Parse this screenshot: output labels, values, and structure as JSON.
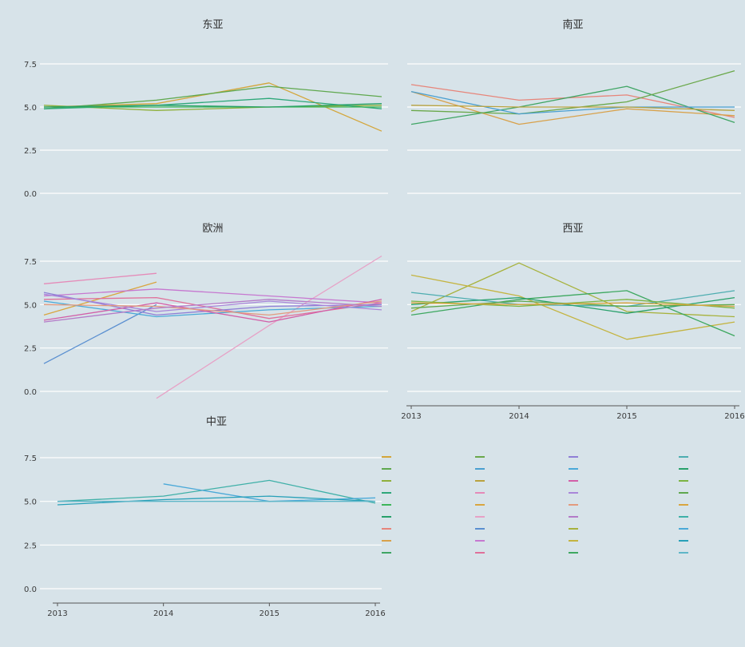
{
  "chart_data": [
    {
      "type": "line",
      "title": "东亚",
      "x": [
        2013,
        2014,
        2015,
        2016
      ],
      "ylim": [
        0,
        7.5
      ],
      "yticks": [
        "0.0",
        "2.5",
        "5.0",
        "7.5"
      ],
      "series": [
        {
          "color": "#d4a63a",
          "values": [
            5.0,
            5.2,
            6.4,
            3.6
          ]
        },
        {
          "color": "#5fa84e",
          "values": [
            4.9,
            5.4,
            6.2,
            5.6
          ]
        },
        {
          "color": "#8fb03c",
          "values": [
            5.1,
            4.8,
            5.0,
            5.1
          ]
        },
        {
          "color": "#2ea87a",
          "values": [
            4.9,
            5.1,
            5.5,
            4.9
          ]
        },
        {
          "color": "#3db55a",
          "values": [
            5.0,
            5.0,
            5.0,
            5.0
          ]
        },
        {
          "color": "#27a06a",
          "values": [
            5.0,
            5.1,
            5.0,
            5.2
          ]
        }
      ]
    },
    {
      "type": "line",
      "title": "南亚",
      "x": [
        2013,
        2014,
        2015,
        2016
      ],
      "ylim": [
        0,
        7.5
      ],
      "yticks": [
        "0.0",
        "2.5",
        "5.0",
        "7.5"
      ],
      "series": [
        {
          "color": "#e7857a",
          "values": [
            6.3,
            5.4,
            5.7,
            4.4
          ]
        },
        {
          "color": "#d8a14a",
          "values": [
            5.9,
            4.0,
            4.9,
            4.5
          ]
        },
        {
          "color": "#3fa564",
          "values": [
            4.0,
            5.0,
            6.2,
            4.1
          ]
        },
        {
          "color": "#6aa84a",
          "values": [
            4.8,
            4.6,
            5.3,
            7.1
          ]
        },
        {
          "color": "#4a9fd0",
          "values": [
            5.9,
            4.6,
            5.0,
            5.0
          ]
        },
        {
          "color": "#b9a23e",
          "values": [
            5.1,
            5.0,
            5.0,
            4.8
          ]
        }
      ]
    },
    {
      "type": "line",
      "title": "欧洲",
      "x": [
        2013,
        2014,
        2015,
        2016
      ],
      "ylim": [
        0,
        7.5
      ],
      "yticks": [
        "0.0",
        "2.5",
        "5.0",
        "7.5"
      ],
      "series": [
        {
          "color": "#e58ab8",
          "values": [
            6.2,
            6.8,
            null,
            null
          ]
        },
        {
          "color": "#d9a53f",
          "values": [
            4.4,
            6.3,
            null,
            null
          ]
        },
        {
          "color": "#e7a1c6",
          "values": [
            null,
            -0.4,
            3.8,
            7.8
          ]
        },
        {
          "color": "#5a8fd0",
          "values": [
            1.6,
            5.0,
            null,
            null
          ]
        },
        {
          "color": "#c678d0",
          "values": [
            5.5,
            5.9,
            5.5,
            5.1
          ]
        },
        {
          "color": "#e0709a",
          "values": [
            5.3,
            5.4,
            4.2,
            5.1
          ]
        },
        {
          "color": "#8f7fd6",
          "values": [
            5.7,
            4.4,
            4.9,
            5.0
          ]
        },
        {
          "color": "#4aa9d8",
          "values": [
            5.2,
            4.3,
            4.7,
            4.9
          ]
        },
        {
          "color": "#d25fa8",
          "values": [
            4.1,
            5.1,
            4.0,
            5.3
          ]
        },
        {
          "color": "#a986d9",
          "values": [
            5.6,
            4.6,
            5.2,
            4.7
          ]
        },
        {
          "color": "#e39a7e",
          "values": [
            5.0,
            4.9,
            4.4,
            5.2
          ]
        },
        {
          "color": "#b47bc8",
          "values": [
            4.0,
            4.8,
            5.3,
            4.9
          ]
        }
      ]
    },
    {
      "type": "line",
      "title": "西亚",
      "x": [
        2013,
        2014,
        2015,
        2016
      ],
      "xtick_labels": [
        "2013",
        "2014",
        "2015",
        "2016"
      ],
      "ylim": [
        0,
        7.5
      ],
      "yticks": [
        "0.0",
        "2.5",
        "5.0",
        "7.5"
      ],
      "series": [
        {
          "color": "#a7b23c",
          "values": [
            4.6,
            7.4,
            4.6,
            4.3
          ]
        },
        {
          "color": "#c4b440",
          "values": [
            6.7,
            5.5,
            3.0,
            4.0
          ]
        },
        {
          "color": "#3ea860",
          "values": [
            4.4,
            5.3,
            5.8,
            3.2
          ]
        },
        {
          "color": "#4dadb0",
          "values": [
            5.7,
            5.0,
            4.9,
            5.8
          ]
        },
        {
          "color": "#27a06a",
          "values": [
            5.0,
            5.4,
            4.5,
            5.4
          ]
        },
        {
          "color": "#7cb442",
          "values": [
            5.2,
            4.9,
            5.3,
            4.8
          ]
        },
        {
          "color": "#5fa84e",
          "values": [
            4.8,
            5.2,
            4.9,
            5.0
          ]
        },
        {
          "color": "#d9a53f",
          "values": [
            5.1,
            5.0,
            5.1,
            4.9
          ]
        }
      ]
    },
    {
      "type": "line",
      "title": "中亚",
      "x": [
        2013,
        2014,
        2015,
        2016
      ],
      "xtick_labels": [
        "2013",
        "2014",
        "2015",
        "2016"
      ],
      "ylim": [
        0,
        7.5
      ],
      "yticks": [
        "0.0",
        "2.5",
        "5.0",
        "7.5"
      ],
      "series": [
        {
          "color": "#3fb0a8",
          "values": [
            5.0,
            5.3,
            6.2,
            4.9
          ]
        },
        {
          "color": "#4aa9d8",
          "values": [
            null,
            6.0,
            5.0,
            5.2
          ]
        },
        {
          "color": "#27a0b8",
          "values": [
            4.8,
            5.1,
            5.3,
            5.0
          ]
        },
        {
          "color": "#5fb6c8",
          "values": [
            5.0,
            5.0,
            5.0,
            5.0
          ]
        }
      ]
    }
  ]
}
